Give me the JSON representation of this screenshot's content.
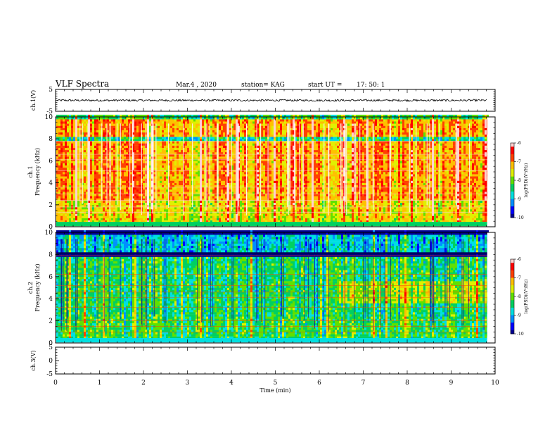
{
  "header": {
    "title": "VLF Spectra",
    "date": "Mar.4 , 2020",
    "station": "station= KAG",
    "start": "start UT =",
    "start_time": "17: 50: 1"
  },
  "chart_data": {
    "type": "heatmap",
    "title": "VLF Spectra",
    "xlabel": "Time (min)",
    "xlim": [
      0,
      10
    ],
    "x_ticks": [
      "0",
      "1",
      "2",
      "3",
      "4",
      "5",
      "6",
      "7",
      "8",
      "9",
      "10"
    ],
    "data_end_min": 9.82,
    "panels": [
      {
        "name": "ch1-waveform",
        "ylabel": "ch.1(V)",
        "ylim": [
          -5,
          5
        ],
        "y_ticks": [
          "5",
          "-5"
        ],
        "trace_level_v": 0
      },
      {
        "name": "ch1-spectrogram",
        "ylabel_channel": "ch.1",
        "ylabel": "Frequency (kHz)",
        "ylim": [
          0,
          10
        ],
        "y_ticks": [
          "0",
          "2",
          "4",
          "6",
          "8",
          "10"
        ],
        "base_level": -7.1,
        "colorbar": {
          "label": "log(PSD)(V²/Hz)",
          "ticks": [
            "-6",
            "-7",
            "-8",
            "-9",
            "-10"
          ],
          "range": [
            -10,
            -6
          ]
        }
      },
      {
        "name": "ch2-spectrogram",
        "ylabel_channel": "ch.2",
        "ylabel": "Frequency (kHz)",
        "ylim": [
          0,
          10
        ],
        "y_ticks": [
          "0",
          "2",
          "4",
          "6",
          "8",
          "10"
        ],
        "base_level": -8.4,
        "colorbar": {
          "label": "log(PSD)(V²/Hz)",
          "ticks": [
            "-6",
            "-7",
            "-8",
            "-9",
            "-10"
          ],
          "range": [
            -10,
            -6
          ]
        }
      },
      {
        "name": "ch3-waveform",
        "ylabel": "ch.3(V)",
        "ylim": [
          -5,
          5
        ],
        "y_ticks": [
          "5",
          "0",
          "-5"
        ],
        "trace_level_v": null
      }
    ],
    "colormap": [
      "#000090",
      "#0000ff",
      "#0090ff",
      "#00e0e0",
      "#00d060",
      "#60e000",
      "#e0f000",
      "#ffc000",
      "#ff4000",
      "#ff0000",
      "#ffd0d0"
    ]
  }
}
